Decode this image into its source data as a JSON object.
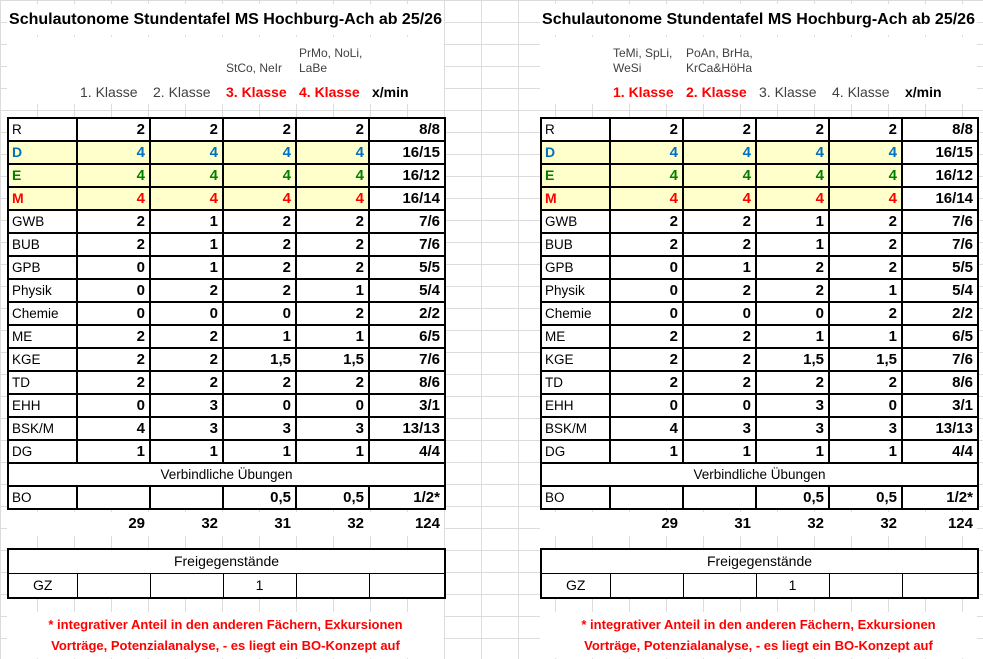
{
  "colors": {
    "header_highlight": "#FF0000",
    "subject_d_blue": "#0070C0",
    "subject_e_green": "#008000",
    "subject_m_red": "#FF0000",
    "row_fill_yellow": "#FFFFCC",
    "footnote_red": "#FF0000",
    "grid_line_gray": "#DCDCDC"
  },
  "footnote": {
    "line1": "* integrativer Anteil in den anderen Fächern, Exkursionen",
    "line2": "Vorträge, Potenzialanalyse,  - es liegt ein BO-Konzept auf"
  },
  "tables": [
    {
      "title": "Schulautonome Stundentafel MS Hochburg-Ach ab 25/26",
      "teacher_labels": [
        "",
        "",
        "",
        "StCo, NeIr",
        "PrMo, NoLi,\nLaBe",
        ""
      ],
      "column_headers": [
        {
          "label": "",
          "highlight": false
        },
        {
          "label": "1. Klasse",
          "highlight": false
        },
        {
          "label": "2. Klasse",
          "highlight": false
        },
        {
          "label": "3. Klasse",
          "highlight": true
        },
        {
          "label": "4. Klasse",
          "highlight": true
        },
        {
          "label": "x/min",
          "highlight": false
        }
      ],
      "subject_rows": [
        {
          "subject": "R",
          "values": [
            "2",
            "2",
            "2",
            "2",
            "8/8"
          ]
        },
        {
          "subject": "D",
          "values": [
            "4",
            "4",
            "4",
            "4",
            "16/15"
          ],
          "color": "#0070C0",
          "fill": true
        },
        {
          "subject": "E",
          "values": [
            "4",
            "4",
            "4",
            "4",
            "16/12"
          ],
          "color": "#008000",
          "fill": true
        },
        {
          "subject": "M",
          "values": [
            "4",
            "4",
            "4",
            "4",
            "16/14"
          ],
          "color": "#FF0000",
          "fill": true
        },
        {
          "subject": "GWB",
          "values": [
            "2",
            "1",
            "2",
            "2",
            "7/6"
          ]
        },
        {
          "subject": "BUB",
          "values": [
            "2",
            "1",
            "2",
            "2",
            "7/6"
          ]
        },
        {
          "subject": "GPB",
          "values": [
            "0",
            "1",
            "2",
            "2",
            "5/5"
          ]
        },
        {
          "subject": "Physik",
          "values": [
            "0",
            "2",
            "2",
            "1",
            "5/4"
          ]
        },
        {
          "subject": "Chemie",
          "values": [
            "0",
            "0",
            "0",
            "2",
            "2/2"
          ]
        },
        {
          "subject": "ME",
          "values": [
            "2",
            "2",
            "1",
            "1",
            "6/5"
          ]
        },
        {
          "subject": "KGE",
          "values": [
            "2",
            "2",
            "1,5",
            "1,5",
            "7/6"
          ]
        },
        {
          "subject": "TD",
          "values": [
            "2",
            "2",
            "2",
            "2",
            "8/6"
          ]
        },
        {
          "subject": "EHH",
          "values": [
            "0",
            "3",
            "0",
            "0",
            "3/1"
          ]
        },
        {
          "subject": "BSK/M",
          "values": [
            "4",
            "3",
            "3",
            "3",
            "13/13"
          ]
        },
        {
          "subject": "DG",
          "values": [
            "1",
            "1",
            "1",
            "1",
            "4/4"
          ]
        }
      ],
      "section_label": "Verbindliche Übungen",
      "bo_row": {
        "subject": "BO",
        "values": [
          "",
          "",
          "0,5",
          "0,5",
          "1/2*"
        ]
      },
      "totals": [
        "29",
        "32",
        "31",
        "32",
        "124"
      ],
      "electives": {
        "header": "Freigegenstände",
        "subject": "GZ",
        "values": [
          "",
          "",
          "1",
          "",
          ""
        ]
      }
    },
    {
      "title": "Schulautonome Stundentafel MS Hochburg-Ach ab 25/26",
      "teacher_labels": [
        "",
        "TeMi, SpLi,\nWeSi",
        "PoAn, BrHa,\nKrCa&HöHa",
        "",
        "",
        ""
      ],
      "column_headers": [
        {
          "label": "",
          "highlight": false
        },
        {
          "label": "1. Klasse",
          "highlight": true
        },
        {
          "label": "2. Klasse",
          "highlight": true
        },
        {
          "label": "3. Klasse",
          "highlight": false
        },
        {
          "label": "4. Klasse",
          "highlight": false
        },
        {
          "label": "x/min",
          "highlight": false
        }
      ],
      "subject_rows": [
        {
          "subject": "R",
          "values": [
            "2",
            "2",
            "2",
            "2",
            "8/8"
          ]
        },
        {
          "subject": "D",
          "values": [
            "4",
            "4",
            "4",
            "4",
            "16/15"
          ],
          "color": "#0070C0",
          "fill": true
        },
        {
          "subject": "E",
          "values": [
            "4",
            "4",
            "4",
            "4",
            "16/12"
          ],
          "color": "#008000",
          "fill": true
        },
        {
          "subject": "M",
          "values": [
            "4",
            "4",
            "4",
            "4",
            "16/14"
          ],
          "color": "#FF0000",
          "fill": true
        },
        {
          "subject": "GWB",
          "values": [
            "2",
            "2",
            "1",
            "2",
            "7/6"
          ]
        },
        {
          "subject": "BUB",
          "values": [
            "2",
            "2",
            "1",
            "2",
            "7/6"
          ]
        },
        {
          "subject": "GPB",
          "values": [
            "0",
            "1",
            "2",
            "2",
            "5/5"
          ]
        },
        {
          "subject": "Physik",
          "values": [
            "0",
            "2",
            "2",
            "1",
            "5/4"
          ]
        },
        {
          "subject": "Chemie",
          "values": [
            "0",
            "0",
            "0",
            "2",
            "2/2"
          ]
        },
        {
          "subject": "ME",
          "values": [
            "2",
            "2",
            "1",
            "1",
            "6/5"
          ]
        },
        {
          "subject": "KGE",
          "values": [
            "2",
            "2",
            "1,5",
            "1,5",
            "7/6"
          ]
        },
        {
          "subject": "TD",
          "values": [
            "2",
            "2",
            "2",
            "2",
            "8/6"
          ]
        },
        {
          "subject": "EHH",
          "values": [
            "0",
            "0",
            "3",
            "0",
            "3/1"
          ]
        },
        {
          "subject": "BSK/M",
          "values": [
            "4",
            "3",
            "3",
            "3",
            "13/13"
          ]
        },
        {
          "subject": "DG",
          "values": [
            "1",
            "1",
            "1",
            "1",
            "4/4"
          ]
        }
      ],
      "section_label": "Verbindliche Übungen",
      "bo_row": {
        "subject": "BO",
        "values": [
          "",
          "",
          "0,5",
          "0,5",
          "1/2*"
        ]
      },
      "totals": [
        "29",
        "31",
        "32",
        "32",
        "124"
      ],
      "electives": {
        "header": "Freigegenstände",
        "subject": "GZ",
        "values": [
          "",
          "",
          "1",
          "",
          ""
        ]
      }
    }
  ]
}
